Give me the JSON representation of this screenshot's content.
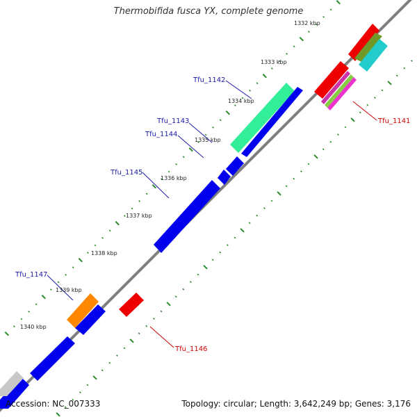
{
  "title": "Thermobifida fusca YX, complete genome",
  "accession_text": "Accession: NC_007333",
  "topology_text": "Topology: circular; Length: 3,642,249 bp; Genes: 3,176",
  "colors": {
    "backbone": "#7f7f7f",
    "tick": "#2a8a2a",
    "forward_label": "#1a1aa6",
    "reverse_label": "#cc0000",
    "gene_blue": "#0000ee",
    "gene_red": "#ee0000",
    "gene_green": "#33ee99",
    "gene_orange": "#ff8800",
    "gene_grey": "#c8c8c8"
  },
  "kbp_ticks": [
    {
      "label": "1332 kbp",
      "kbp": 1332
    },
    {
      "label": "1333 kbp",
      "kbp": 1333
    },
    {
      "label": "1334 kbp",
      "kbp": 1334
    },
    {
      "label": "1335 kbp",
      "kbp": 1335
    },
    {
      "label": "1336 kbp",
      "kbp": 1336
    },
    {
      "label": "1337 kbp",
      "kbp": 1337
    },
    {
      "label": "1338 kbp",
      "kbp": 1338
    },
    {
      "label": "1339 kbp",
      "kbp": 1339
    },
    {
      "label": "1340 kbp",
      "kbp": 1340
    }
  ],
  "gene_labels": [
    {
      "name": "Tfu_1142",
      "strand": "forward"
    },
    {
      "name": "Tfu_1143",
      "strand": "forward"
    },
    {
      "name": "Tfu_1144",
      "strand": "forward"
    },
    {
      "name": "Tfu_1145",
      "strand": "forward"
    },
    {
      "name": "Tfu_1147",
      "strand": "forward"
    },
    {
      "name": "Tfu_1141",
      "strand": "reverse"
    },
    {
      "name": "Tfu_1146",
      "strand": "reverse"
    }
  ]
}
